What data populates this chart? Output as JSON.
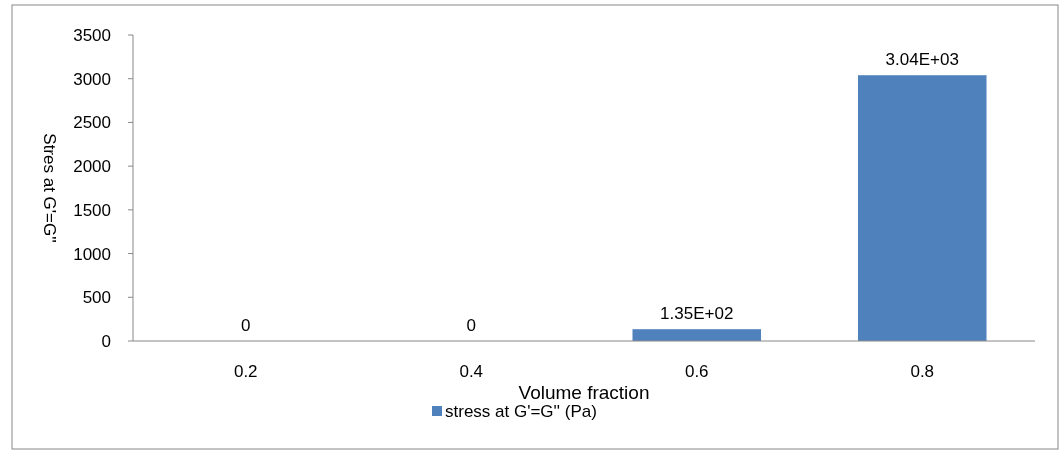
{
  "chart_data": {
    "type": "bar",
    "xlabel": "Volume fraction",
    "ylabel": "Stres at G'=G''",
    "categories": [
      "0.2",
      "0.4",
      "0.6",
      "0.8"
    ],
    "series": [
      {
        "name": "stress at G'=G'' (Pa)",
        "color": "#4f81bd",
        "values": [
          0,
          0,
          135,
          3040
        ],
        "value_labels": [
          "0",
          "0",
          "1.35E+02",
          "3.04E+03"
        ]
      }
    ],
    "ylim": [
      0,
      3500
    ],
    "yticks": [
      0,
      500,
      1000,
      1500,
      2000,
      2500,
      3000,
      3500
    ],
    "grid": false,
    "legend": "bottom"
  }
}
